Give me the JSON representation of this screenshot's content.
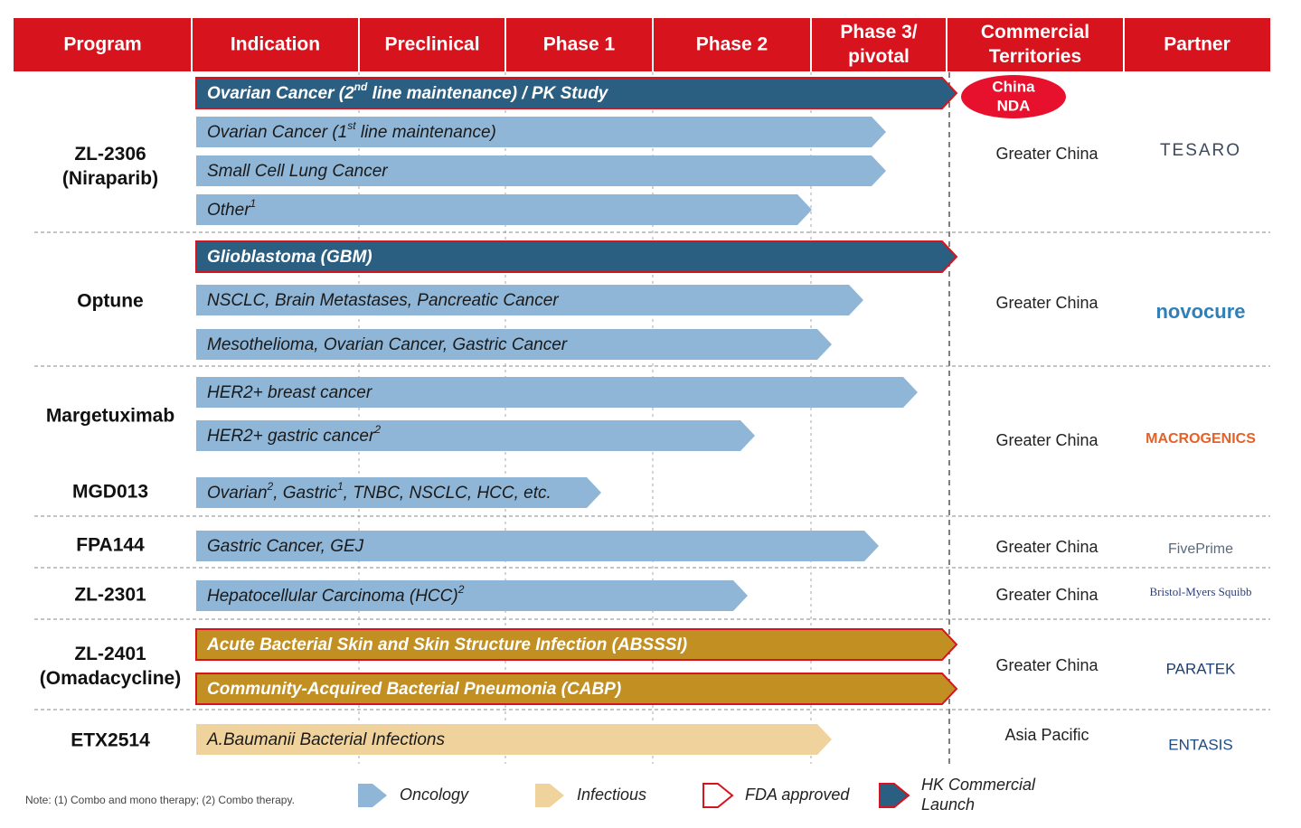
{
  "header": {
    "columns": [
      [
        "Program"
      ],
      [
        "Indication"
      ],
      [
        "Preclinical"
      ],
      [
        "Phase 1"
      ],
      [
        "Phase 2"
      ],
      [
        "Phase 3/",
        "pivotal"
      ],
      [
        "Commercial",
        "Territories"
      ],
      [
        "Partner"
      ]
    ]
  },
  "badge": [
    "China",
    "NDA"
  ],
  "groups": [
    {
      "programs": [
        {
          "name": [
            "ZL-2306",
            "(Niraparib)"
          ]
        }
      ],
      "territory": "Greater China",
      "partner": "TESARO",
      "indications": [
        {
          "label": [
            "Ovarian Cancer (2",
            {
              "sup": "nd"
            },
            " line maintenance) / PK Study"
          ],
          "color": "#2b5f81",
          "outline": "#d7141e"
        },
        {
          "label": [
            "Ovarian Cancer (1",
            {
              "sup": "st"
            },
            " line maintenance)"
          ],
          "color": "#8fb6d7"
        },
        {
          "label": [
            "Small Cell Lung Cancer"
          ],
          "color": "#8fb6d7"
        },
        {
          "label": [
            "Other",
            {
              "sup": "1"
            }
          ],
          "color": "#8fb6d7"
        }
      ]
    },
    {
      "programs": [
        {
          "name": [
            "Optune"
          ]
        }
      ],
      "territory": "Greater China",
      "partner": "novocure",
      "indications": [
        {
          "label": [
            "Glioblastoma (GBM)"
          ],
          "color": "#2b5f81",
          "outline": "#d7141e"
        },
        {
          "label": [
            "NSCLC, Brain Metastases, Pancreatic Cancer"
          ],
          "color": "#8fb6d7"
        },
        {
          "label": [
            "Mesothelioma, Ovarian Cancer, Gastric Cancer"
          ],
          "color": "#8fb6d7"
        }
      ]
    },
    {
      "programs": [
        {
          "name": [
            "Margetuximab"
          ]
        },
        {
          "name": [
            "MGD013"
          ]
        }
      ],
      "territory": "Greater China",
      "partner": "MACROGENICS",
      "indications": [
        {
          "label": [
            "HER2+ breast cancer"
          ],
          "color": "#8fb6d7"
        },
        {
          "label": [
            "HER2+ gastric cancer",
            {
              "sup": "2"
            }
          ],
          "color": "#8fb6d7"
        },
        {
          "label": [
            "Ovarian",
            {
              "sup": "2"
            },
            ", Gastric",
            {
              "sup": "1"
            },
            ", TNBC, NSCLC, HCC, etc."
          ],
          "color": "#8fb6d7"
        }
      ]
    },
    {
      "programs": [
        {
          "name": [
            "FPA144"
          ]
        }
      ],
      "territory": "Greater China",
      "partner": "FivePrime",
      "indications": [
        {
          "label": [
            "Gastric Cancer, GEJ"
          ],
          "color": "#8fb6d7"
        }
      ]
    },
    {
      "programs": [
        {
          "name": [
            "ZL-2301"
          ]
        }
      ],
      "territory": "Greater China",
      "partner": "Bristol-Myers Squibb",
      "indications": [
        {
          "label": [
            "Hepatocellular Carcinoma (HCC)",
            {
              "sup": "2"
            }
          ],
          "color": "#8fb6d7"
        }
      ]
    },
    {
      "programs": [
        {
          "name": [
            "ZL-2401",
            "(Omadacycline)"
          ]
        }
      ],
      "territory": "Greater China",
      "partner": "PARATEK",
      "indications": [
        {
          "label": [
            "Acute Bacterial Skin and Skin Structure Infection (ABSSSI)"
          ],
          "color": "#c18f22",
          "outline": "#d7141e"
        },
        {
          "label": [
            "Community-Acquired Bacterial Pneumonia (CABP)"
          ],
          "color": "#c18f22",
          "outline": "#d7141e"
        }
      ]
    },
    {
      "programs": [
        {
          "name": [
            "ETX2514"
          ]
        }
      ],
      "territory": "Asia Pacific",
      "partner": "ENTASIS",
      "indications": [
        {
          "label": [
            "A.Baumanii Bacterial Infections"
          ],
          "color": "#f0d39c"
        }
      ]
    }
  ],
  "note": "Note: (1) Combo and mono therapy; (2) Combo therapy.",
  "legend": [
    {
      "label": "Oncology",
      "color": "#8fb6d7"
    },
    {
      "label": "Infectious",
      "color": "#f0d39c"
    },
    {
      "label": "FDA approved",
      "color": "#ffffff",
      "outline": "#d7141e"
    },
    {
      "label": [
        "HK Commercial",
        "Launch"
      ],
      "color": "#2b5f81",
      "outline": "#d7141e"
    }
  ]
}
